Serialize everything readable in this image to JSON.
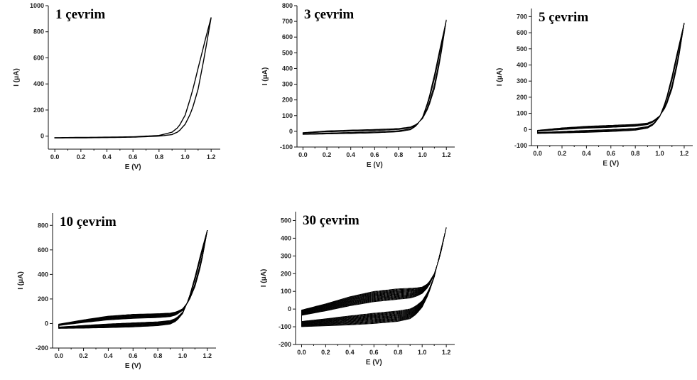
{
  "chart_data": [
    {
      "type": "line",
      "title": "1 çevrim",
      "xlabel": "E (V)",
      "ylabel": "I (μA)",
      "xlim": [
        -0.05,
        1.27
      ],
      "ylim": [
        -100,
        1000
      ],
      "xticks": [
        0.0,
        0.2,
        0.4,
        0.6,
        0.8,
        1.0,
        1.2
      ],
      "xtick_labels": [
        "0.0",
        "0.2",
        "0.4",
        "0.6",
        "0.8",
        "1.0",
        "1.2"
      ],
      "yticks": [
        0,
        200,
        400,
        600,
        800,
        1000
      ],
      "ytick_labels": [
        "0",
        "200",
        "400",
        "600",
        "800",
        "1000"
      ],
      "cycles": 1,
      "forward": {
        "x": [
          0.0,
          0.2,
          0.4,
          0.6,
          0.8,
          0.9,
          0.95,
          1.0,
          1.05,
          1.1,
          1.15,
          1.2
        ],
        "y": [
          -12,
          -10,
          -8,
          -5,
          5,
          30,
          70,
          160,
          320,
          520,
          720,
          910
        ]
      },
      "reverse": {
        "x": [
          1.2,
          1.15,
          1.1,
          1.05,
          1.0,
          0.95,
          0.9,
          0.8,
          0.6,
          0.4,
          0.2,
          0.0
        ],
        "y": [
          910,
          620,
          360,
          190,
          90,
          35,
          12,
          0,
          -8,
          -11,
          -13,
          -14
        ]
      }
    },
    {
      "type": "line",
      "title": "3 çevrim",
      "xlabel": "E (V)",
      "ylabel": "I (μA)",
      "xlim": [
        -0.05,
        1.27
      ],
      "ylim": [
        -100,
        800
      ],
      "xticks": [
        0.0,
        0.2,
        0.4,
        0.6,
        0.8,
        1.0,
        1.2
      ],
      "xtick_labels": [
        "0.0",
        "0.2",
        "0.4",
        "0.6",
        "0.8",
        "1.0",
        "1.2"
      ],
      "yticks": [
        -100,
        0,
        100,
        200,
        300,
        400,
        500,
        600,
        700,
        800
      ],
      "ytick_labels": [
        "-100",
        "0",
        "100",
        "200",
        "300",
        "400",
        "500",
        "600",
        "700",
        "800"
      ],
      "cycles": 3,
      "forward": {
        "x": [
          0.0,
          0.2,
          0.4,
          0.6,
          0.8,
          0.9,
          0.95,
          1.0,
          1.05,
          1.1,
          1.15,
          1.2
        ],
        "y": [
          -20,
          -17,
          -14,
          -10,
          -3,
          10,
          35,
          90,
          200,
          360,
          540,
          710
        ]
      },
      "reverse": {
        "x": [
          1.2,
          1.15,
          1.1,
          1.05,
          1.0,
          0.95,
          0.9,
          0.8,
          0.6,
          0.4,
          0.2,
          0.0
        ],
        "y": [
          710,
          460,
          270,
          150,
          80,
          45,
          28,
          18,
          12,
          8,
          3,
          -8
        ]
      }
    },
    {
      "type": "line",
      "title": "5 çevrim",
      "xlabel": "E (V)",
      "ylabel": "I (μA)",
      "xlim": [
        -0.05,
        1.27
      ],
      "ylim": [
        -100,
        750
      ],
      "xticks": [
        0.0,
        0.2,
        0.4,
        0.6,
        0.8,
        1.0,
        1.2
      ],
      "xtick_labels": [
        "0.0",
        "0.2",
        "0.4",
        "0.6",
        "0.8",
        "1.0",
        "1.2"
      ],
      "yticks": [
        -100,
        0,
        100,
        200,
        300,
        400,
        500,
        600,
        700
      ],
      "ytick_labels": [
        "-100",
        "0",
        "100",
        "200",
        "300",
        "400",
        "500",
        "600",
        "700"
      ],
      "cycles": 5,
      "forward": {
        "x": [
          0.0,
          0.2,
          0.4,
          0.6,
          0.8,
          0.9,
          0.95,
          1.0,
          1.05,
          1.1,
          1.15,
          1.2
        ],
        "y": [
          -25,
          -22,
          -18,
          -13,
          -5,
          8,
          30,
          80,
          180,
          330,
          500,
          660
        ]
      },
      "reverse": {
        "x": [
          1.2,
          1.15,
          1.1,
          1.05,
          1.0,
          0.95,
          0.9,
          0.8,
          0.6,
          0.4,
          0.2,
          0.0
        ],
        "y": [
          660,
          420,
          250,
          140,
          85,
          55,
          40,
          32,
          26,
          20,
          10,
          -5
        ]
      }
    },
    {
      "type": "line",
      "title": "10 çevrim",
      "xlabel": "E (V)",
      "ylabel": "I (μA)",
      "xlim": [
        -0.05,
        1.27
      ],
      "ylim": [
        -200,
        900
      ],
      "xticks": [
        0.0,
        0.2,
        0.4,
        0.6,
        0.8,
        1.0,
        1.2
      ],
      "xtick_labels": [
        "0.0",
        "0.2",
        "0.4",
        "0.6",
        "0.8",
        "1.0",
        "1.2"
      ],
      "yticks": [
        -200,
        0,
        200,
        400,
        600,
        800
      ],
      "ytick_labels": [
        "-200",
        "0",
        "200",
        "400",
        "600",
        "800"
      ],
      "cycles": 10,
      "forward": {
        "x": [
          0.0,
          0.2,
          0.4,
          0.6,
          0.8,
          0.9,
          0.95,
          1.0,
          1.05,
          1.1,
          1.15,
          1.2
        ],
        "y": [
          -40,
          -38,
          -34,
          -28,
          -18,
          -5,
          20,
          80,
          200,
          380,
          580,
          760
        ]
      },
      "reverse": {
        "x": [
          1.2,
          1.15,
          1.1,
          1.05,
          1.0,
          0.95,
          0.9,
          0.8,
          0.6,
          0.4,
          0.2,
          0.0
        ],
        "y": [
          760,
          480,
          300,
          180,
          120,
          95,
          85,
          80,
          75,
          60,
          30,
          -5
        ]
      }
    },
    {
      "type": "line",
      "title": "30 çevrim",
      "xlabel": "E (V)",
      "ylabel": "I (μA)",
      "xlim": [
        -0.05,
        1.27
      ],
      "ylim": [
        -200,
        550
      ],
      "xticks": [
        0.0,
        0.2,
        0.4,
        0.6,
        0.8,
        1.0,
        1.2
      ],
      "xtick_labels": [
        "0.0",
        "0.2",
        "0.4",
        "0.6",
        "0.8",
        "1.0",
        "1.2"
      ],
      "yticks": [
        -200,
        -100,
        0,
        100,
        200,
        300,
        400,
        500
      ],
      "ytick_labels": [
        "-200",
        "-100",
        "0",
        "100",
        "200",
        "300",
        "400",
        "500"
      ],
      "cycles": 30,
      "forward": {
        "x": [
          0.0,
          0.2,
          0.4,
          0.6,
          0.8,
          0.9,
          0.95,
          1.0,
          1.05,
          1.1,
          1.15,
          1.2
        ],
        "y": [
          -100,
          -95,
          -90,
          -82,
          -70,
          -55,
          -30,
          10,
          80,
          180,
          320,
          460
        ]
      },
      "reverse": {
        "x": [
          1.2,
          1.15,
          1.1,
          1.05,
          1.0,
          0.95,
          0.9,
          0.8,
          0.6,
          0.4,
          0.2,
          0.0
        ],
        "y": [
          460,
          300,
          200,
          145,
          125,
          120,
          118,
          115,
          100,
          70,
          30,
          -5
        ]
      }
    }
  ]
}
